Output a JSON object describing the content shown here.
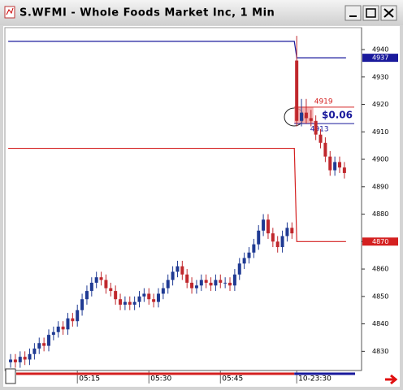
{
  "chart_data": {
    "type": "candlestick",
    "title": "S.WFMI - Whole Foods Market Inc, 1 Min",
    "x": [
      1,
      2,
      3,
      4,
      5,
      6,
      7,
      8,
      9,
      10,
      11,
      12,
      13,
      14,
      15,
      16,
      17,
      18,
      19,
      20,
      21,
      22,
      23,
      24,
      25,
      26,
      27,
      28,
      29,
      30,
      31,
      32,
      33,
      34,
      35,
      36,
      37,
      38,
      39,
      40,
      41,
      42,
      43,
      44,
      45,
      46,
      47,
      48,
      49,
      50,
      51,
      52,
      53,
      54,
      55,
      56,
      57,
      58,
      59,
      60,
      61,
      62,
      63,
      64,
      65,
      66,
      67,
      68,
      69,
      70,
      71
    ],
    "open": [
      4826,
      4827,
      4826,
      4828,
      4827,
      4829,
      4831,
      4833,
      4832,
      4836,
      4837,
      4839,
      4838,
      4842,
      4841,
      4845,
      4849,
      4852,
      4855,
      4857,
      4856,
      4853,
      4852,
      4849,
      4847,
      4848,
      4847,
      4848,
      4850,
      4851,
      4849,
      4848,
      4851,
      4853,
      4856,
      4859,
      4861,
      4858,
      4855,
      4853,
      4854,
      4856,
      4855,
      4854,
      4856,
      4855,
      4855,
      4854,
      4858,
      4862,
      4864,
      4866,
      4869,
      4874,
      4878,
      4873,
      4870,
      4868,
      4872,
      4875,
      4936,
      4914,
      4917,
      4915,
      4914,
      4909,
      4906,
      4901,
      4896,
      4899,
      4897
    ],
    "high": [
      4829,
      4829,
      4830,
      4830,
      4831,
      4833,
      4835,
      4835,
      4838,
      4839,
      4841,
      4841,
      4844,
      4844,
      4847,
      4851,
      4854,
      4857,
      4859,
      4859,
      4858,
      4855,
      4854,
      4851,
      4850,
      4850,
      4850,
      4852,
      4853,
      4853,
      4851,
      4853,
      4855,
      4858,
      4861,
      4863,
      4863,
      4860,
      4857,
      4856,
      4858,
      4858,
      4857,
      4858,
      4858,
      4857,
      4857,
      4860,
      4864,
      4866,
      4868,
      4871,
      4876,
      4880,
      4880,
      4875,
      4872,
      4874,
      4877,
      4877,
      4945,
      4922,
      4922,
      4918,
      4916,
      4911,
      4908,
      4903,
      4901,
      4901,
      4899
    ],
    "low": [
      4824,
      4824,
      4824,
      4825,
      4825,
      4827,
      4829,
      4830,
      4830,
      4834,
      4835,
      4836,
      4836,
      4839,
      4839,
      4843,
      4847,
      4850,
      4853,
      4854,
      4851,
      4850,
      4847,
      4845,
      4845,
      4845,
      4845,
      4846,
      4848,
      4847,
      4846,
      4846,
      4849,
      4851,
      4854,
      4857,
      4856,
      4853,
      4851,
      4851,
      4852,
      4853,
      4852,
      4852,
      4853,
      4853,
      4852,
      4852,
      4856,
      4860,
      4862,
      4864,
      4867,
      4872,
      4871,
      4868,
      4866,
      4866,
      4870,
      4871,
      4912,
      4912,
      4913,
      4912,
      4907,
      4904,
      4899,
      4894,
      4894,
      4895,
      4893
    ],
    "close": [
      4827,
      4826,
      4828,
      4827,
      4829,
      4831,
      4833,
      4832,
      4836,
      4837,
      4839,
      4838,
      4842,
      4841,
      4845,
      4849,
      4852,
      4855,
      4857,
      4856,
      4853,
      4852,
      4849,
      4847,
      4848,
      4847,
      4848,
      4850,
      4851,
      4849,
      4848,
      4851,
      4853,
      4856,
      4859,
      4861,
      4858,
      4855,
      4853,
      4854,
      4856,
      4855,
      4854,
      4856,
      4855,
      4855,
      4854,
      4858,
      4862,
      4864,
      4866,
      4869,
      4874,
      4878,
      4873,
      4870,
      4868,
      4872,
      4875,
      4873,
      4914,
      4917,
      4915,
      4914,
      4909,
      4906,
      4901,
      4896,
      4899,
      4897,
      4895
    ],
    "up_color": "#1f3a93",
    "down_color": "#c0282d",
    "xlim": [
      -0.2,
      74.6
    ],
    "xticks": [
      {
        "value": 15,
        "label": "05:15"
      },
      {
        "value": 30,
        "label": "05:30"
      },
      {
        "value": 45,
        "label": "05:45"
      },
      {
        "value": 61,
        "label": "10-23:30"
      }
    ],
    "ylim": [
      4823,
      4948
    ],
    "yticks": [
      4830,
      4840,
      4850,
      4860,
      4870,
      4880,
      4890,
      4900,
      4910,
      4920,
      4930,
      4940
    ],
    "levels": [
      {
        "value": 4937,
        "prior": 4943,
        "color": "#1a1a9c"
      },
      {
        "value": 4870,
        "prior": 4904,
        "color": "#d42020"
      }
    ],
    "annotation": {
      "high": 4919,
      "low": 4913,
      "high_color": "#d42020",
      "low_color": "#1a1a9c",
      "change": {
        "value": 0.06,
        "label": "$0.06"
      }
    }
  }
}
